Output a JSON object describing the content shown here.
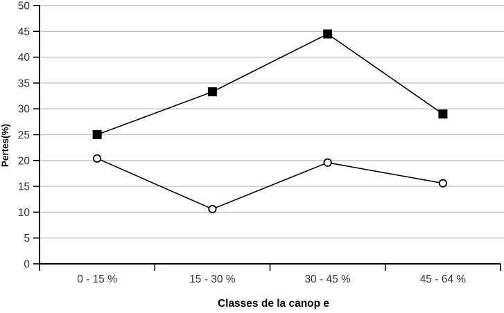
{
  "chart_data": {
    "type": "line",
    "title": "",
    "xlabel": "Classes de la canop e",
    "ylabel": "Pertes(%)",
    "categories": [
      "0 - 15 %",
      "15 - 30 %",
      "30 - 45 %",
      "45 - 64 %"
    ],
    "series": [
      {
        "name": "filled-squares",
        "marker": "square",
        "values": [
          25,
          33.3,
          44.5,
          29
        ]
      },
      {
        "name": "open-circles",
        "marker": "circle",
        "values": [
          20.4,
          10.6,
          19.6,
          15.6
        ]
      }
    ],
    "ylim": [
      0,
      50
    ],
    "yticks": [
      0,
      5,
      10,
      15,
      20,
      25,
      30,
      35,
      40,
      45,
      50
    ],
    "grid": "horizontal",
    "legend": "none",
    "colors": {
      "line": "#000000",
      "marker_fill_square": "#000000",
      "marker_fill_circle": "#ffffff",
      "gridline": "#c4c4c4",
      "axis": "#000000",
      "tick_label": "#333333",
      "axis_title": "#000000"
    }
  }
}
